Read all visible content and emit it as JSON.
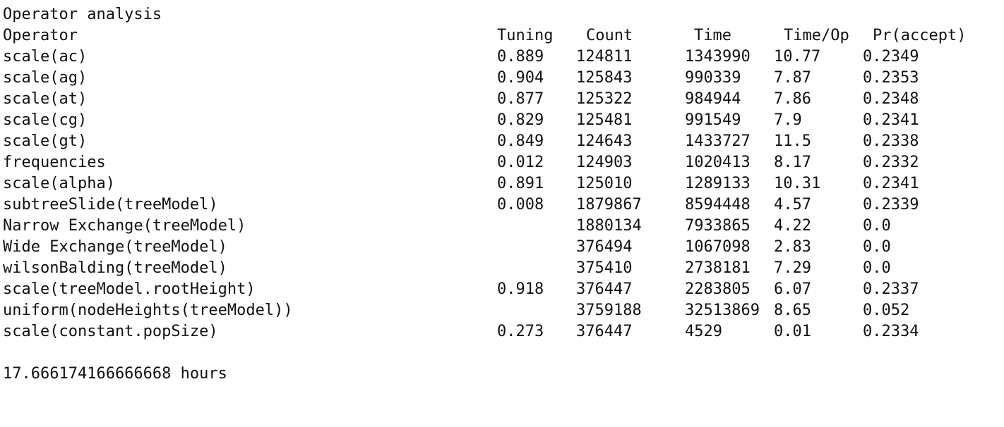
{
  "title": "Operator analysis",
  "headers": {
    "operator": "Operator",
    "tuning": "Tuning",
    "count": "Count",
    "time": "Time",
    "time_per_op": "Time/Op",
    "pr_accept": "Pr(accept)"
  },
  "rows": [
    {
      "operator": "scale(ac)",
      "tuning": "0.889",
      "count": "124811",
      "time": "1343990",
      "time_per_op": "10.77",
      "pr_accept": "0.2349"
    },
    {
      "operator": "scale(ag)",
      "tuning": "0.904",
      "count": "125843",
      "time": "990339",
      "time_per_op": "7.87",
      "pr_accept": "0.2353"
    },
    {
      "operator": "scale(at)",
      "tuning": "0.877",
      "count": "125322",
      "time": "984944",
      "time_per_op": "7.86",
      "pr_accept": "0.2348"
    },
    {
      "operator": "scale(cg)",
      "tuning": "0.829",
      "count": "125481",
      "time": "991549",
      "time_per_op": "7.9",
      "pr_accept": "0.2341"
    },
    {
      "operator": "scale(gt)",
      "tuning": "0.849",
      "count": "124643",
      "time": "1433727",
      "time_per_op": "11.5",
      "pr_accept": "0.2338"
    },
    {
      "operator": "frequencies",
      "tuning": "0.012",
      "count": "124903",
      "time": "1020413",
      "time_per_op": "8.17",
      "pr_accept": "0.2332"
    },
    {
      "operator": "scale(alpha)",
      "tuning": "0.891",
      "count": "125010",
      "time": "1289133",
      "time_per_op": "10.31",
      "pr_accept": "0.2341"
    },
    {
      "operator": "subtreeSlide(treeModel)",
      "tuning": "0.008",
      "count": "1879867",
      "time": "8594448",
      "time_per_op": "4.57",
      "pr_accept": "0.2339"
    },
    {
      "operator": "Narrow Exchange(treeModel)",
      "tuning": "",
      "count": "1880134",
      "time": "7933865",
      "time_per_op": "4.22",
      "pr_accept": "0.0"
    },
    {
      "operator": "Wide Exchange(treeModel)",
      "tuning": "",
      "count": "376494",
      "time": "1067098",
      "time_per_op": "2.83",
      "pr_accept": "0.0"
    },
    {
      "operator": "wilsonBalding(treeModel)",
      "tuning": "",
      "count": "375410",
      "time": "2738181",
      "time_per_op": "7.29",
      "pr_accept": "0.0"
    },
    {
      "operator": "scale(treeModel.rootHeight)",
      "tuning": "0.918",
      "count": "376447",
      "time": "2283805",
      "time_per_op": "6.07",
      "pr_accept": "0.2337"
    },
    {
      "operator": "uniform(nodeHeights(treeModel))",
      "tuning": "",
      "count": "3759188",
      "time": "32513869",
      "time_per_op": "8.65",
      "pr_accept": "0.052"
    },
    {
      "operator": "scale(constant.popSize)",
      "tuning": "0.273",
      "count": "376447",
      "time": "4529",
      "time_per_op": "0.01",
      "pr_accept": "0.2334"
    }
  ],
  "total_time": "17.666174166666668 hours"
}
